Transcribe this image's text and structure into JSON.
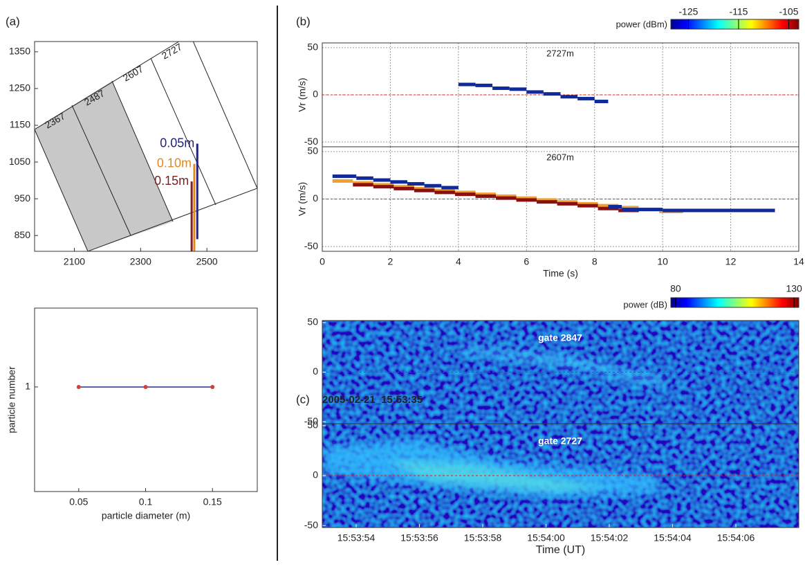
{
  "chart_data": [
    {
      "type": "line",
      "panel_label": "(a)",
      "xlim": [
        1980,
        2652
      ],
      "ylim": [
        807,
        1378
      ],
      "xticks": [
        2100,
        2300,
        2500
      ],
      "yticks": [
        850,
        950,
        1050,
        1150,
        1250,
        1350
      ],
      "annotations": [
        "2367",
        "2487",
        "2607",
        "2727"
      ],
      "series": [
        {
          "name": "0.05m",
          "color": "#22237a",
          "x": [
            2471,
            2471
          ],
          "values": [
            1100,
            840
          ]
        },
        {
          "name": "0.10m",
          "color": "#e08a1e",
          "x": [
            2462,
            2462
          ],
          "values": [
            1045,
            807
          ]
        },
        {
          "name": "0.15m",
          "color": "#7a2222",
          "x": [
            2454,
            2454
          ],
          "values": [
            997,
            807
          ]
        }
      ]
    },
    {
      "type": "line",
      "xlabel": "particle diameter (m)",
      "ylabel": "particle number",
      "xlim": [
        0.017,
        0.1835
      ],
      "ylim": [
        0.43,
        1.43
      ],
      "xticks": [
        0.05,
        0.1,
        0.15
      ],
      "yticks": [
        1
      ],
      "series": [
        {
          "color": "#2a2a8a",
          "marker_color": "#d04040",
          "x": [
            0.05,
            0.1,
            0.15
          ],
          "values": [
            1,
            1,
            1
          ]
        }
      ]
    },
    {
      "type": "step",
      "panel_label": "(b)",
      "title": "2727m",
      "ylabel": "Vr (m/s)",
      "xlim": [
        0,
        14
      ],
      "xticks": [
        0,
        2,
        4,
        6,
        8,
        10,
        12,
        14
      ],
      "ylim": [
        -55,
        55
      ],
      "yticks": [
        -50,
        0,
        50
      ],
      "hline": 0,
      "colorbar": {
        "label": "power (dBm)",
        "lim": [
          -128.5,
          -103
        ],
        "ticks": [
          -125,
          -115,
          -105
        ]
      },
      "series": [
        {
          "color": "#102a9a",
          "bins": [
            4.0,
            4.5,
            5.0,
            5.5,
            6.0,
            6.5,
            7.0,
            7.5,
            8.0,
            8.4
          ],
          "values": [
            11,
            10,
            7,
            6,
            3,
            1,
            -2,
            -4,
            -7
          ]
        }
      ]
    },
    {
      "type": "step",
      "title": "2607m",
      "xlabel": "Time (s)",
      "ylabel": "Vr (m/s)",
      "xlim": [
        0,
        14
      ],
      "xticks": [
        0,
        2,
        4,
        6,
        8,
        10,
        12,
        14
      ],
      "ylim": [
        -55,
        55
      ],
      "yticks": [
        -50,
        0,
        50
      ],
      "hline": 0,
      "series": [
        {
          "color": "#f0a030",
          "bins": [
            0.3,
            0.9,
            1.5,
            2.1,
            2.7,
            3.3,
            3.9,
            4.5,
            5.1,
            5.7,
            6.3,
            6.9,
            7.5,
            8.1,
            8.7,
            9.3,
            9.9,
            10.6
          ],
          "values": [
            19,
            17,
            15,
            13,
            11,
            9,
            7,
            5,
            3,
            1,
            -1,
            -3,
            -5,
            -7,
            -9,
            -11,
            -13
          ]
        },
        {
          "color": "#8a1010",
          "bins": [
            0.9,
            1.5,
            2.1,
            2.7,
            3.3,
            3.9,
            4.5,
            5.1,
            5.7,
            6.3,
            6.9,
            7.5,
            8.1,
            8.7,
            9.3
          ],
          "values": [
            15,
            13,
            11,
            9,
            7,
            5,
            3,
            1,
            -1,
            -3,
            -5,
            -7,
            -10,
            -12
          ]
        },
        {
          "color": "#102a9a",
          "bins": [
            0.3,
            1.0,
            1.5,
            2.0,
            2.5,
            3.0,
            3.5,
            4.0,
            8.4,
            8.8,
            10.0,
            13.3
          ],
          "values": [
            24,
            22,
            20,
            18,
            16,
            14,
            12,
            null,
            -8,
            -11,
            -12
          ]
        }
      ]
    },
    {
      "type": "heatmap",
      "panel_label": "(c)",
      "title": "2005-02-21_15:53:35",
      "annotation": "gate 2847",
      "ylim": [
        -52,
        52
      ],
      "yticks": [
        -50,
        0,
        50
      ],
      "hline": 0,
      "colorbar": {
        "label": "power (dB)",
        "lim": [
          78,
          132
        ],
        "ticks": [
          80,
          130
        ]
      }
    },
    {
      "type": "heatmap",
      "annotation": "gate 2727",
      "xlabel": "Time (UT)",
      "ylim": [
        -52,
        52
      ],
      "yticks": [
        -50,
        0,
        50
      ],
      "hline": 0,
      "categories": [
        "15:53:54",
        "15:53:56",
        "15:53:58",
        "15:54:00",
        "15:54:02",
        "15:54:04",
        "15:54:06"
      ]
    }
  ]
}
